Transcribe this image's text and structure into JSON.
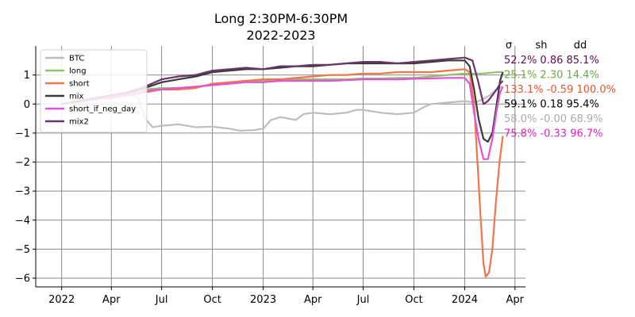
{
  "chart_data": {
    "type": "line",
    "title": "Long 2:30PM-6:30PM",
    "subtitle": "2022-2023",
    "xlabel": "",
    "ylabel": "",
    "x_ticks": [
      "2022",
      "Apr",
      "Jul",
      "Oct",
      "2023",
      "Apr",
      "Jul",
      "Oct",
      "2024",
      "Apr"
    ],
    "x_tick_dates": [
      "2022-01-01",
      "2022-04-01",
      "2022-07-01",
      "2022-10-01",
      "2023-01-01",
      "2023-04-01",
      "2023-07-01",
      "2023-10-01",
      "2024-01-01",
      "2024-04-01"
    ],
    "xlim": [
      "2021-11-15",
      "2024-04-20"
    ],
    "ylim": [
      -6.3,
      2.0
    ],
    "y_ticks": [
      1,
      0,
      -1,
      -2,
      -3,
      -4,
      -5,
      -6
    ],
    "y_tick_labels": [
      "1",
      "0",
      "−1",
      "−2",
      "−3",
      "−4",
      "−5",
      "−6"
    ],
    "grid": true,
    "legend_position": "upper-left",
    "stats_header": [
      "σ",
      "sh",
      "dd"
    ],
    "series": [
      {
        "name": "BTC",
        "color": "#bdbdbd",
        "stats": "52.2% 0.86 85.1%",
        "stats_color": "#5c0e4f",
        "points": [
          [
            "2022-01-01",
            0.0
          ],
          [
            "2022-02-01",
            0.05
          ],
          [
            "2022-03-01",
            0.15
          ],
          [
            "2022-04-01",
            0.3
          ],
          [
            "2022-05-01",
            0.4
          ],
          [
            "2022-05-20",
            0.2
          ],
          [
            "2022-06-01",
            -0.5
          ],
          [
            "2022-06-15",
            -0.8
          ],
          [
            "2022-07-01",
            -0.75
          ],
          [
            "2022-08-01",
            -0.7
          ],
          [
            "2022-09-01",
            -0.8
          ],
          [
            "2022-10-01",
            -0.78
          ],
          [
            "2022-11-01",
            -0.85
          ],
          [
            "2022-11-20",
            -0.92
          ],
          [
            "2022-12-15",
            -0.9
          ],
          [
            "2023-01-01",
            -0.85
          ],
          [
            "2023-01-15",
            -0.55
          ],
          [
            "2023-02-01",
            -0.45
          ],
          [
            "2023-03-01",
            -0.55
          ],
          [
            "2023-03-15",
            -0.35
          ],
          [
            "2023-04-01",
            -0.3
          ],
          [
            "2023-05-01",
            -0.35
          ],
          [
            "2023-06-01",
            -0.3
          ],
          [
            "2023-06-20",
            -0.2
          ],
          [
            "2023-07-01",
            -0.2
          ],
          [
            "2023-08-01",
            -0.3
          ],
          [
            "2023-09-01",
            -0.35
          ],
          [
            "2023-10-01",
            -0.3
          ],
          [
            "2023-10-20",
            -0.1
          ],
          [
            "2023-11-01",
            0.0
          ],
          [
            "2023-12-01",
            0.05
          ],
          [
            "2024-01-01",
            0.1
          ],
          [
            "2024-01-20",
            0.05
          ],
          [
            "2024-02-01",
            0.15
          ],
          [
            "2024-02-15",
            0.3
          ],
          [
            "2024-03-01",
            0.55
          ],
          [
            "2024-03-10",
            0.6
          ]
        ]
      },
      {
        "name": "long",
        "color": "#8fc16d",
        "stats": "25.1% 2.30 14.4%",
        "stats_color": "#6aaa3f",
        "points": [
          [
            "2022-01-01",
            0.0
          ],
          [
            "2022-02-01",
            0.1
          ],
          [
            "2022-03-01",
            0.2
          ],
          [
            "2022-04-01",
            0.3
          ],
          [
            "2022-05-01",
            0.4
          ],
          [
            "2022-06-01",
            0.5
          ],
          [
            "2022-07-01",
            0.55
          ],
          [
            "2022-08-01",
            0.55
          ],
          [
            "2022-09-01",
            0.6
          ],
          [
            "2022-10-01",
            0.65
          ],
          [
            "2022-11-01",
            0.75
          ],
          [
            "2022-12-01",
            0.8
          ],
          [
            "2023-01-01",
            0.8
          ],
          [
            "2023-02-01",
            0.8
          ],
          [
            "2023-03-01",
            0.85
          ],
          [
            "2023-04-01",
            0.85
          ],
          [
            "2023-05-01",
            0.85
          ],
          [
            "2023-06-01",
            0.85
          ],
          [
            "2023-07-01",
            0.88
          ],
          [
            "2023-08-01",
            0.88
          ],
          [
            "2023-09-01",
            0.9
          ],
          [
            "2023-10-01",
            0.9
          ],
          [
            "2023-11-01",
            0.95
          ],
          [
            "2023-12-01",
            1.0
          ],
          [
            "2024-01-01",
            1.05
          ],
          [
            "2024-02-01",
            1.05
          ],
          [
            "2024-03-01",
            1.1
          ],
          [
            "2024-03-10",
            1.1
          ]
        ]
      },
      {
        "name": "short",
        "color": "#f07548",
        "stats": "133.1% -0.59 100.0%",
        "stats_color": "#e8562a",
        "points": [
          [
            "2022-01-01",
            0.0
          ],
          [
            "2022-02-01",
            0.1
          ],
          [
            "2022-03-01",
            0.15
          ],
          [
            "2022-04-01",
            0.2
          ],
          [
            "2022-05-01",
            0.3
          ],
          [
            "2022-06-01",
            0.4
          ],
          [
            "2022-07-01",
            0.5
          ],
          [
            "2022-08-01",
            0.5
          ],
          [
            "2022-09-01",
            0.55
          ],
          [
            "2022-10-01",
            0.7
          ],
          [
            "2022-11-01",
            0.75
          ],
          [
            "2022-12-01",
            0.8
          ],
          [
            "2023-01-01",
            0.85
          ],
          [
            "2023-02-01",
            0.85
          ],
          [
            "2023-03-01",
            0.9
          ],
          [
            "2023-04-01",
            0.95
          ],
          [
            "2023-05-01",
            1.0
          ],
          [
            "2023-06-01",
            1.0
          ],
          [
            "2023-07-01",
            1.05
          ],
          [
            "2023-08-01",
            1.05
          ],
          [
            "2023-09-01",
            1.1
          ],
          [
            "2023-10-01",
            1.1
          ],
          [
            "2023-11-01",
            1.1
          ],
          [
            "2023-12-01",
            1.15
          ],
          [
            "2024-01-01",
            1.2
          ],
          [
            "2024-01-10",
            1.1
          ],
          [
            "2024-01-18",
            0.0
          ],
          [
            "2024-01-24",
            -2.0
          ],
          [
            "2024-01-30",
            -4.0
          ],
          [
            "2024-02-04",
            -5.5
          ],
          [
            "2024-02-08",
            -5.95
          ],
          [
            "2024-02-14",
            -5.8
          ],
          [
            "2024-02-20",
            -5.0
          ],
          [
            "2024-02-26",
            -3.5
          ],
          [
            "2024-03-04",
            -2.0
          ],
          [
            "2024-03-10",
            -1.1
          ]
        ]
      },
      {
        "name": "mix",
        "color": "#3b3b3b",
        "stats": "59.1% 0.18 95.4%",
        "stats_color": "#000000",
        "points": [
          [
            "2022-01-01",
            0.0
          ],
          [
            "2022-02-01",
            0.1
          ],
          [
            "2022-03-01",
            0.2
          ],
          [
            "2022-04-01",
            0.3
          ],
          [
            "2022-05-01",
            0.4
          ],
          [
            "2022-06-01",
            0.55
          ],
          [
            "2022-07-01",
            0.75
          ],
          [
            "2022-08-01",
            0.85
          ],
          [
            "2022-09-01",
            0.95
          ],
          [
            "2022-10-01",
            1.1
          ],
          [
            "2022-11-01",
            1.15
          ],
          [
            "2022-12-01",
            1.2
          ],
          [
            "2023-01-01",
            1.2
          ],
          [
            "2023-02-01",
            1.25
          ],
          [
            "2023-03-01",
            1.3
          ],
          [
            "2023-04-01",
            1.3
          ],
          [
            "2023-05-01",
            1.35
          ],
          [
            "2023-06-01",
            1.4
          ],
          [
            "2023-07-01",
            1.4
          ],
          [
            "2023-08-01",
            1.4
          ],
          [
            "2023-09-01",
            1.4
          ],
          [
            "2023-10-01",
            1.4
          ],
          [
            "2023-11-01",
            1.45
          ],
          [
            "2023-12-01",
            1.5
          ],
          [
            "2024-01-01",
            1.5
          ],
          [
            "2024-01-10",
            1.3
          ],
          [
            "2024-01-18",
            0.5
          ],
          [
            "2024-01-26",
            -0.5
          ],
          [
            "2024-02-04",
            -1.2
          ],
          [
            "2024-02-12",
            -1.3
          ],
          [
            "2024-02-20",
            -1.0
          ],
          [
            "2024-02-28",
            0.0
          ],
          [
            "2024-03-05",
            0.8
          ],
          [
            "2024-03-10",
            1.1
          ]
        ]
      },
      {
        "name": "short_if_neg_day",
        "color": "#e64fd9",
        "stats": "58.0% -0.00 68.9%",
        "stats_color": "#aaaaaa",
        "points": [
          [
            "2022-01-01",
            0.0
          ],
          [
            "2022-02-01",
            0.1
          ],
          [
            "2022-03-01",
            0.15
          ],
          [
            "2022-04-01",
            0.25
          ],
          [
            "2022-05-01",
            0.35
          ],
          [
            "2022-06-01",
            0.45
          ],
          [
            "2022-07-01",
            0.5
          ],
          [
            "2022-08-01",
            0.55
          ],
          [
            "2022-09-01",
            0.6
          ],
          [
            "2022-10-01",
            0.65
          ],
          [
            "2022-11-01",
            0.7
          ],
          [
            "2022-12-01",
            0.75
          ],
          [
            "2023-01-01",
            0.75
          ],
          [
            "2023-02-01",
            0.8
          ],
          [
            "2023-03-01",
            0.8
          ],
          [
            "2023-04-01",
            0.8
          ],
          [
            "2023-05-01",
            0.8
          ],
          [
            "2023-06-01",
            0.82
          ],
          [
            "2023-07-01",
            0.85
          ],
          [
            "2023-08-01",
            0.85
          ],
          [
            "2023-09-01",
            0.85
          ],
          [
            "2023-10-01",
            0.87
          ],
          [
            "2023-11-01",
            0.88
          ],
          [
            "2023-12-01",
            0.9
          ],
          [
            "2024-01-01",
            0.9
          ],
          [
            "2024-01-10",
            0.7
          ],
          [
            "2024-01-18",
            -0.3
          ],
          [
            "2024-01-26",
            -1.2
          ],
          [
            "2024-02-04",
            -1.9
          ],
          [
            "2024-02-12",
            -1.9
          ],
          [
            "2024-02-20",
            -1.2
          ],
          [
            "2024-02-28",
            -0.2
          ],
          [
            "2024-03-05",
            0.4
          ],
          [
            "2024-03-10",
            0.6
          ]
        ]
      },
      {
        "name": "mix2",
        "color": "#6a3568",
        "stats": "75.8% -0.33 96.7%",
        "stats_color": "#e01fc4",
        "points": [
          [
            "2022-01-01",
            0.0
          ],
          [
            "2022-02-01",
            0.1
          ],
          [
            "2022-03-01",
            0.2
          ],
          [
            "2022-04-01",
            0.3
          ],
          [
            "2022-05-01",
            0.4
          ],
          [
            "2022-06-01",
            0.6
          ],
          [
            "2022-07-01",
            0.85
          ],
          [
            "2022-08-01",
            0.95
          ],
          [
            "2022-09-01",
            1.0
          ],
          [
            "2022-10-01",
            1.15
          ],
          [
            "2022-11-01",
            1.2
          ],
          [
            "2022-12-01",
            1.25
          ],
          [
            "2023-01-01",
            1.2
          ],
          [
            "2023-02-01",
            1.3
          ],
          [
            "2023-03-01",
            1.3
          ],
          [
            "2023-04-01",
            1.35
          ],
          [
            "2023-05-01",
            1.35
          ],
          [
            "2023-06-01",
            1.4
          ],
          [
            "2023-07-01",
            1.45
          ],
          [
            "2023-08-01",
            1.45
          ],
          [
            "2023-09-01",
            1.4
          ],
          [
            "2023-10-01",
            1.45
          ],
          [
            "2023-11-01",
            1.5
          ],
          [
            "2023-12-01",
            1.55
          ],
          [
            "2024-01-01",
            1.6
          ],
          [
            "2024-01-15",
            1.5
          ],
          [
            "2024-01-25",
            0.8
          ],
          [
            "2024-02-04",
            0.0
          ],
          [
            "2024-02-12",
            0.1
          ],
          [
            "2024-02-20",
            0.3
          ],
          [
            "2024-02-28",
            0.5
          ],
          [
            "2024-03-05",
            0.7
          ],
          [
            "2024-03-10",
            0.8
          ]
        ]
      }
    ]
  }
}
